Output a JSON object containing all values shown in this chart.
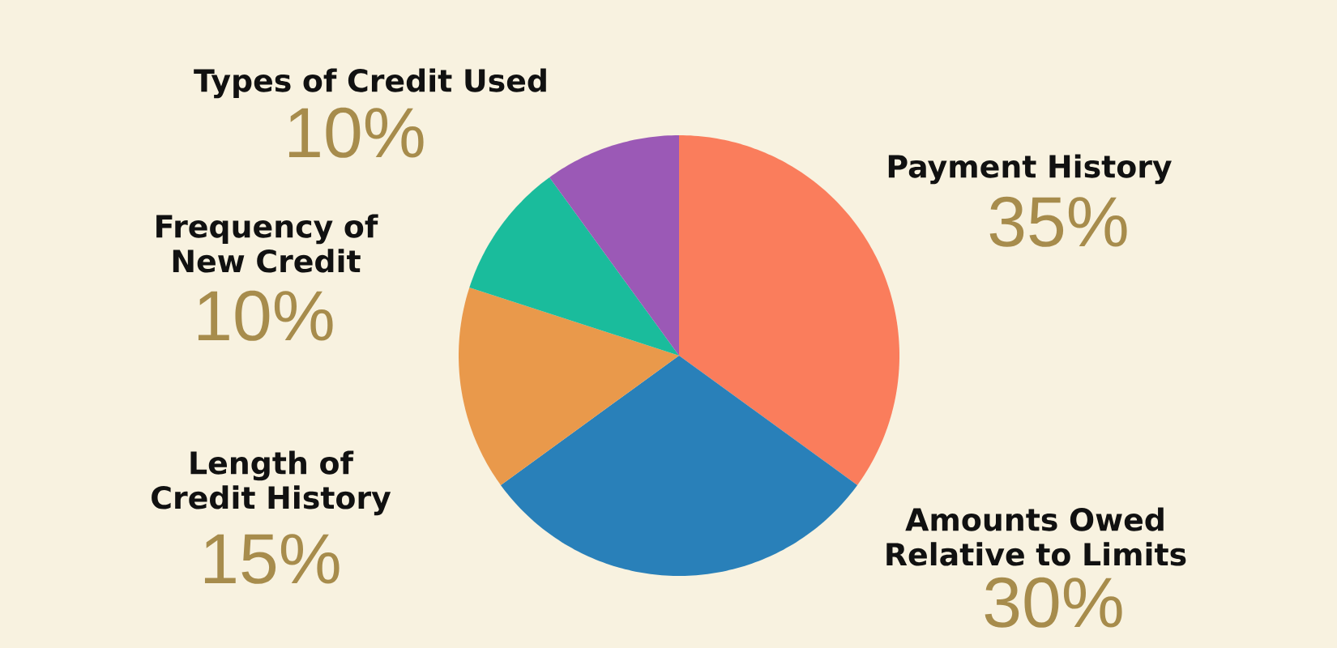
{
  "chart_data": {
    "type": "pie",
    "categories": [
      "Payment History",
      "Amounts Owed Relative to Limits",
      "Length of Credit History",
      "Frequency of New Credit",
      "Types of Credit Used"
    ],
    "values": [
      35,
      30,
      15,
      10,
      10
    ],
    "colors": [
      "#fa7d5c",
      "#2980b9",
      "#e9994b",
      "#1abc9c",
      "#9b59b6"
    ],
    "value_labels": [
      "35%",
      "30%",
      "15%",
      "10%",
      "10%"
    ]
  }
}
